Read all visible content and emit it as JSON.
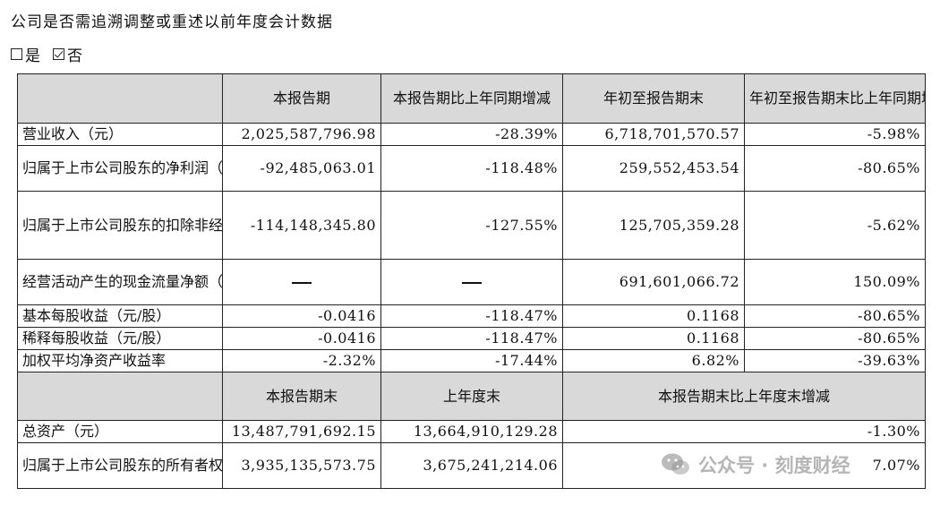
{
  "question": "公司是否需追溯调整或重述以前年度会计数据",
  "options": [
    {
      "label": "是",
      "checked": false
    },
    {
      "label": "否",
      "checked": true
    }
  ],
  "section1": {
    "headers": [
      "",
      "本报告期",
      "本报告期比上年同期增减",
      "年初至报告期末",
      "年初至报告期末比上年同期增减"
    ],
    "rows": [
      {
        "label": "营业收入（元）",
        "c1": "2,025,587,796.98",
        "c2": "-28.39%",
        "c3": "6,718,701,570.57",
        "c4": "-5.98%"
      },
      {
        "label": "归属于上市公司股东的净利润（元）",
        "c1": "-92,485,063.01",
        "c2": "-118.48%",
        "c3": "259,552,453.54",
        "c4": "-80.65%"
      },
      {
        "label": "归属于上市公司股东的扣除非经常性损益的净利润（元）",
        "c1": "-114,148,345.80",
        "c2": "-127.55%",
        "c3": "125,705,359.28",
        "c4": "-5.62%"
      },
      {
        "label": "经营活动产生的现金流量净额（元）",
        "c1": "—",
        "c2": "—",
        "c3": "691,601,066.72",
        "c4": "150.09%"
      },
      {
        "label": "基本每股收益（元/股）",
        "c1": "-0.0416",
        "c2": "-118.47%",
        "c3": "0.1168",
        "c4": "-80.65%"
      },
      {
        "label": "稀释每股收益（元/股）",
        "c1": "-0.0416",
        "c2": "-118.47%",
        "c3": "0.1168",
        "c4": "-80.65%"
      },
      {
        "label": "加权平均净资产收益率",
        "c1": "-2.32%",
        "c2": "-17.44%",
        "c3": "6.82%",
        "c4": "-39.63%"
      }
    ]
  },
  "section2": {
    "headers": [
      "",
      "本报告期末",
      "上年度末",
      "本报告期末比上年度末增减"
    ],
    "rows": [
      {
        "label": "总资产（元）",
        "c1": "13,487,791,692.15",
        "c2": "13,664,910,129.28",
        "c3": "-1.30%"
      },
      {
        "label": "归属于上市公司股东的所有者权益（元）",
        "c1": "3,935,135,573.75",
        "c2": "3,675,241,214.06",
        "c3": "7.07%"
      }
    ]
  },
  "watermark": {
    "text": "公众号 · 刻度财经",
    "icon": "wechat-icon"
  }
}
